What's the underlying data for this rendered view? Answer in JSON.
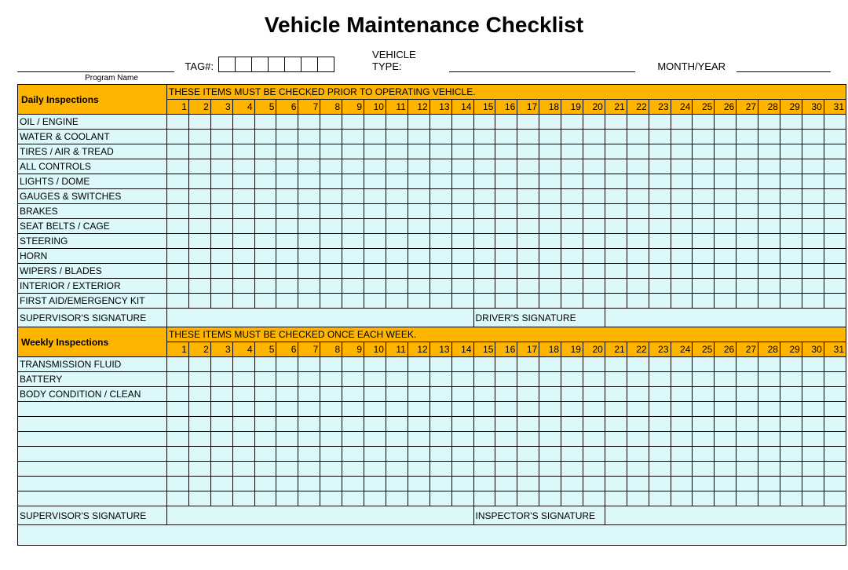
{
  "title": "Vehicle Maintenance Checklist",
  "header": {
    "tag_label": "TAG#:",
    "tag_box_count": 7,
    "vehicle_type_label": "VEHICLE TYPE:",
    "month_year_label": "MONTH/YEAR",
    "program_name_label": "Program Name"
  },
  "colors": {
    "header_bg": "#ffb400",
    "cell_bg": "#dcf8fb",
    "border": "#000000",
    "page_bg": "#ffffff"
  },
  "day_count": 31,
  "daily": {
    "section_title": "Daily Inspections",
    "instruction": "THESE ITEMS MUST BE CHECKED PRIOR TO OPERATING VEHICLE.",
    "items": [
      "OIL / ENGINE",
      "WATER & COOLANT",
      "TIRES / AIR & TREAD",
      "ALL CONTROLS",
      "LIGHTS / DOME",
      "GAUGES & SWITCHES",
      "BRAKES",
      "SEAT BELTS / CAGE",
      "STEERING",
      "HORN",
      "WIPERS / BLADES",
      "INTERIOR / EXTERIOR",
      "FIRST AID/EMERGENCY KIT"
    ],
    "sig_left": "SUPERVISOR'S SIGNATURE",
    "sig_right": "DRIVER'S SIGNATURE"
  },
  "weekly": {
    "section_title": "Weekly Inspections",
    "instruction": "THESE ITEMS MUST BE CHECKED ONCE EACH WEEK.",
    "items": [
      "TRANSMISSION FLUID",
      "BATTERY",
      "BODY CONDITION / CLEAN",
      "",
      "",
      "",
      "",
      "",
      "",
      ""
    ],
    "sig_left": "SUPERVISOR'S SIGNATURE",
    "sig_right": "INSPECTOR'S SIGNATURE"
  }
}
